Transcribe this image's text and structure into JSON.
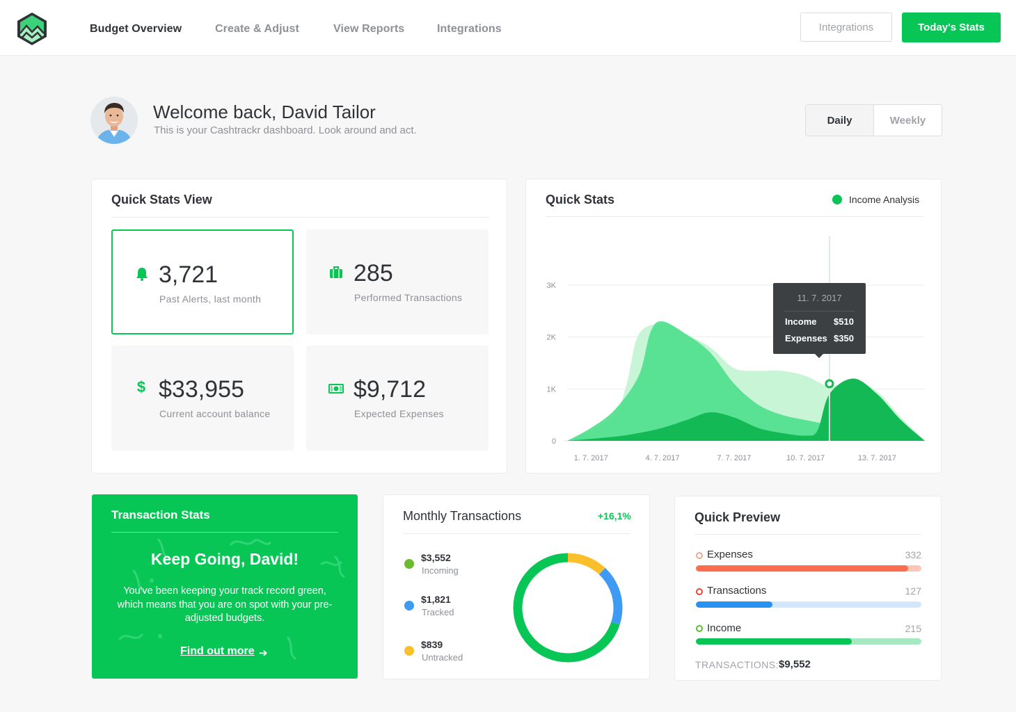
{
  "nav": {
    "items": [
      "Budget Overview",
      "Create & Adjust",
      "View Reports",
      "Integrations"
    ],
    "active_index": 0,
    "integrations_button": "Integrations",
    "todays_stats_button": "Today's Stats"
  },
  "welcome": {
    "title": "Welcome back, David Tailor",
    "subtitle": "This is your Cashtrackr dashboard. Look around and act."
  },
  "period_toggle": {
    "options": [
      "Daily",
      "Weekly"
    ],
    "selected": "Daily"
  },
  "quick_stats_view": {
    "title": "Quick Stats View",
    "stats": [
      {
        "icon": "bell-icon",
        "value": "3,721",
        "label": "Past Alerts, last month",
        "selected": true
      },
      {
        "icon": "briefcase-icon",
        "value": "285",
        "label": "Performed Transactions",
        "selected": false
      },
      {
        "icon": "dollar-icon",
        "value": "$33,955",
        "label": "Current account balance",
        "selected": false
      },
      {
        "icon": "banknote-icon",
        "value": "$9,712",
        "label": "Expected Expenses",
        "selected": false
      }
    ]
  },
  "quick_stats_chart": {
    "title": "Quick Stats",
    "legend": "Income Analysis",
    "tooltip": {
      "date": "11. 7. 2017",
      "income_label": "Income",
      "income_value": "$510",
      "expenses_label": "Expenses",
      "expenses_value": "$350"
    }
  },
  "chart_data": {
    "type": "area",
    "x_tick_labels": [
      "1. 7. 2017",
      "4. 7. 2017",
      "7. 7. 2017",
      "10. 7. 2017",
      "13. 7. 2017"
    ],
    "y_tick_labels": [
      "0",
      "1K",
      "2K",
      "3K"
    ],
    "ylim": [
      0,
      3000
    ],
    "xlim": [
      0,
      15
    ],
    "grid": true,
    "legend_position": "top-right",
    "colors": {
      "back": "#c8f5d6",
      "middle": "#4fe08d",
      "front": "#12b954"
    },
    "series": [
      {
        "name": "",
        "x": [
          0,
          1,
          2,
          2.5,
          3,
          4,
          5,
          6,
          7,
          8,
          9,
          10,
          11,
          12,
          13,
          14,
          15
        ],
        "values": [
          0,
          200,
          500,
          1100,
          2050,
          2250,
          2050,
          1800,
          1400,
          1350,
          1350,
          1250,
          1050,
          1150,
          950,
          450,
          0
        ]
      },
      {
        "name": "",
        "x": [
          0,
          1,
          2,
          3,
          3.5,
          4,
          5,
          6,
          7,
          8,
          9,
          10,
          11,
          12,
          13,
          14,
          15
        ],
        "values": [
          0,
          250,
          600,
          1250,
          2100,
          2300,
          2050,
          1700,
          1100,
          700,
          500,
          400,
          300,
          150,
          100,
          40,
          0
        ]
      },
      {
        "name": "",
        "x": [
          0,
          2,
          3,
          4,
          5,
          6,
          7,
          8,
          9,
          10,
          10.5,
          11,
          12,
          13,
          14,
          15
        ],
        "values": [
          0,
          80,
          150,
          250,
          400,
          550,
          450,
          250,
          150,
          100,
          200,
          900,
          1200,
          900,
          400,
          0
        ]
      }
    ],
    "highlight": {
      "x": 11,
      "label": "11. 7. 2017"
    }
  },
  "transaction_stats": {
    "title": "Transaction Stats",
    "headline": "Keep Going, David!",
    "body": "You've been keeping your track record green, which means that you are on spot with your pre-adjusted budgets.",
    "link": "Find out more"
  },
  "monthly_transactions": {
    "title": "Monthly Transactions",
    "change": "+16,1%",
    "items": [
      {
        "value": "$3,552",
        "label": "Incoming",
        "color": "#6cbb2e"
      },
      {
        "value": "$1,821",
        "label": "Tracked",
        "color": "#3d9bf3"
      },
      {
        "value": "$839",
        "label": "Untracked",
        "color": "#fbbf2c"
      }
    ],
    "donut_shares": {
      "untracked": 0.12,
      "tracked": 0.18,
      "incoming": 0.7
    }
  },
  "quick_preview": {
    "title": "Quick Preview",
    "rows": [
      {
        "label": "Expenses",
        "value": "332",
        "fraction": 0.94,
        "color": "#fd6e4f",
        "track": "#fdc6b9",
        "ring": "#e9a99a"
      },
      {
        "label": "Transactions",
        "value": "127",
        "fraction": 0.34,
        "color": "#2693f2",
        "track": "#d2e7fb",
        "ring": "#ee4434"
      },
      {
        "label": "Income",
        "value": "215",
        "fraction": 0.69,
        "color": "#08c655",
        "track": "#a6e8bf",
        "ring": "#5abb3b"
      }
    ],
    "total_label": "TRANSACTIONS:",
    "total_value": "$9,552"
  }
}
